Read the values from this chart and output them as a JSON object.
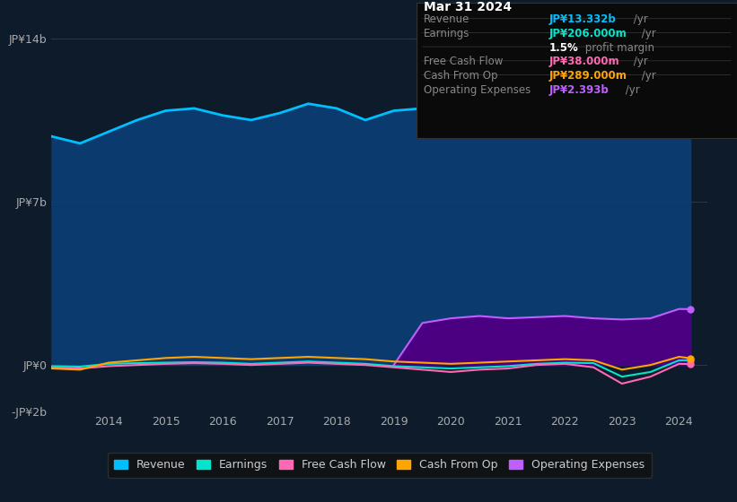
{
  "bg_color": "#0d1b2a",
  "plot_bg_color": "#0d1b2a",
  "grid_color": "#1e3a5f",
  "title_box": {
    "date": "Mar 31 2024",
    "rows": [
      {
        "label": "Revenue",
        "value": "JP¥13.332b",
        "suffix": " /yr",
        "color": "#00bfff"
      },
      {
        "label": "Earnings",
        "value": "JP¥206.000m",
        "suffix": " /yr",
        "color": "#00e5cc"
      },
      {
        "label": "",
        "value": "1.5%",
        "suffix": " profit margin",
        "color": "#ffffff"
      },
      {
        "label": "Free Cash Flow",
        "value": "JP¥38.000m",
        "suffix": " /yr",
        "color": "#ff69b4"
      },
      {
        "label": "Cash From Op",
        "value": "JP¥289.000m",
        "suffix": " /yr",
        "color": "#ffa500"
      },
      {
        "label": "Operating Expenses",
        "value": "JP¥2.393b",
        "suffix": " /yr",
        "color": "#bf5fff"
      }
    ]
  },
  "ylim": [
    -2000000000.0,
    15000000000.0
  ],
  "yticks": [
    -2000000000.0,
    0,
    7000000000.0,
    14000000000.0
  ],
  "ytick_labels": [
    "-JP¥2b",
    "JP¥0",
    "JP¥7b",
    "JP¥14b"
  ],
  "xlim": [
    2013.0,
    2024.5
  ],
  "xtick_years": [
    2014,
    2015,
    2016,
    2017,
    2018,
    2019,
    2020,
    2021,
    2022,
    2023,
    2024
  ],
  "legend": [
    {
      "label": "Revenue",
      "color": "#00bfff"
    },
    {
      "label": "Earnings",
      "color": "#00e5cc"
    },
    {
      "label": "Free Cash Flow",
      "color": "#ff69b4"
    },
    {
      "label": "Cash From Op",
      "color": "#ffa500"
    },
    {
      "label": "Operating Expenses",
      "color": "#bf5fff"
    }
  ],
  "revenue": {
    "color": "#00bfff",
    "fill_color": "#0a3a6e",
    "x": [
      2013.0,
      2013.5,
      2014.0,
      2014.5,
      2015.0,
      2015.5,
      2016.0,
      2016.5,
      2017.0,
      2017.5,
      2018.0,
      2018.5,
      2019.0,
      2019.5,
      2020.0,
      2020.5,
      2021.0,
      2021.5,
      2022.0,
      2022.5,
      2023.0,
      2023.2,
      2023.5,
      2023.8,
      2024.0,
      2024.2
    ],
    "y": [
      9800000000.0,
      9500000000.0,
      10000000000.0,
      10500000000.0,
      10900000000.0,
      11000000000.0,
      10700000000.0,
      10500000000.0,
      10800000000.0,
      11200000000.0,
      11000000000.0,
      10500000000.0,
      10900000000.0,
      11000000000.0,
      11000000000.0,
      11100000000.0,
      11200000000.0,
      11300000000.0,
      11500000000.0,
      11700000000.0,
      12300000000.0,
      12900000000.0,
      11800000000.0,
      12500000000.0,
      13300000000.0,
      13330000000.0
    ]
  },
  "earnings": {
    "color": "#00e5cc",
    "x": [
      2013.0,
      2013.5,
      2014.0,
      2014.5,
      2015.0,
      2015.5,
      2016.0,
      2016.5,
      2017.0,
      2017.5,
      2018.0,
      2018.5,
      2019.0,
      2019.5,
      2020.0,
      2020.5,
      2021.0,
      2021.5,
      2022.0,
      2022.5,
      2023.0,
      2023.5,
      2024.0,
      2024.2
    ],
    "y": [
      -50000000.0,
      -70000000.0,
      50000000.0,
      80000000.0,
      100000000.0,
      120000000.0,
      100000000.0,
      50000000.0,
      100000000.0,
      150000000.0,
      100000000.0,
      50000000.0,
      -50000000.0,
      -100000000.0,
      -150000000.0,
      -100000000.0,
      -50000000.0,
      50000000.0,
      100000000.0,
      80000000.0,
      -500000000.0,
      -300000000.0,
      200000000.0,
      206000000.0
    ]
  },
  "free_cash_flow": {
    "color": "#ff69b4",
    "x": [
      2013.0,
      2013.5,
      2014.0,
      2014.5,
      2015.0,
      2015.5,
      2016.0,
      2016.5,
      2017.0,
      2017.5,
      2018.0,
      2018.5,
      2019.0,
      2019.5,
      2020.0,
      2020.5,
      2021.0,
      2021.5,
      2022.0,
      2022.5,
      2023.0,
      2023.5,
      2024.0,
      2024.2
    ],
    "y": [
      -100000000.0,
      -150000000.0,
      -50000000.0,
      0.0,
      50000000.0,
      80000000.0,
      50000000.0,
      0.0,
      50000000.0,
      100000000.0,
      50000000.0,
      0.0,
      -100000000.0,
      -200000000.0,
      -300000000.0,
      -200000000.0,
      -150000000.0,
      0.0,
      50000000.0,
      -100000000.0,
      -800000000.0,
      -500000000.0,
      50000000.0,
      38000000.0
    ]
  },
  "cash_from_op": {
    "color": "#ffa500",
    "x": [
      2013.0,
      2013.5,
      2014.0,
      2014.5,
      2015.0,
      2015.5,
      2016.0,
      2016.5,
      2017.0,
      2017.5,
      2018.0,
      2018.5,
      2019.0,
      2019.5,
      2020.0,
      2020.5,
      2021.0,
      2021.5,
      2022.0,
      2022.5,
      2023.0,
      2023.5,
      2024.0,
      2024.2
    ],
    "y": [
      -150000000.0,
      -200000000.0,
      100000000.0,
      200000000.0,
      300000000.0,
      350000000.0,
      300000000.0,
      250000000.0,
      300000000.0,
      350000000.0,
      300000000.0,
      250000000.0,
      150000000.0,
      100000000.0,
      50000000.0,
      100000000.0,
      150000000.0,
      200000000.0,
      250000000.0,
      200000000.0,
      -200000000.0,
      0.0,
      350000000.0,
      289000000.0
    ]
  },
  "op_expenses": {
    "color": "#bf5fff",
    "fill_color": "#4b0082",
    "x": [
      2019.0,
      2019.5,
      2020.0,
      2020.5,
      2021.0,
      2021.5,
      2022.0,
      2022.5,
      2023.0,
      2023.5,
      2024.0,
      2024.2
    ],
    "y": [
      0.0,
      1800000000.0,
      2000000000.0,
      2100000000.0,
      2000000000.0,
      2050000000.0,
      2100000000.0,
      2000000000.0,
      1950000000.0,
      2000000000.0,
      2400000000.0,
      2393000000.0
    ]
  }
}
